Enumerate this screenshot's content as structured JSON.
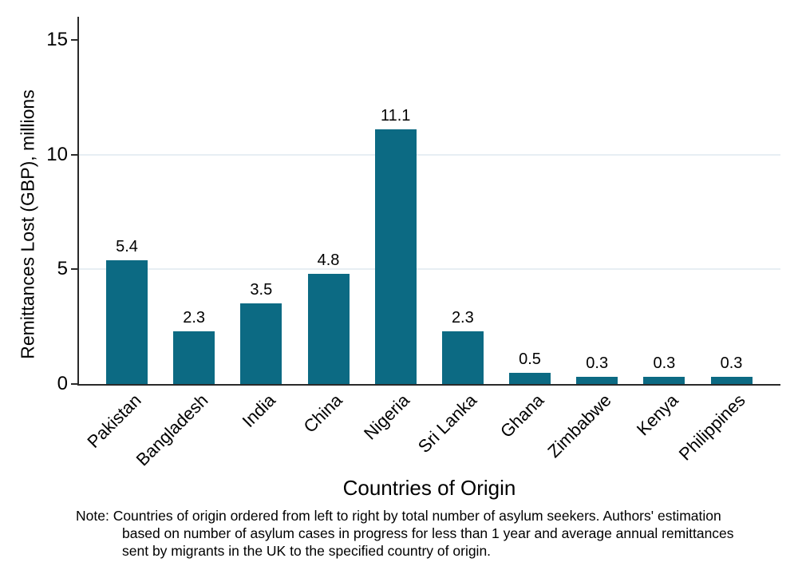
{
  "chart_data": {
    "type": "bar",
    "title": "",
    "categories": [
      "Pakistan",
      "Bangladesh",
      "India",
      "China",
      "Nigeria",
      "Sri Lanka",
      "Ghana",
      "Zimbabwe",
      "Kenya",
      "Philippines"
    ],
    "values": [
      5.4,
      2.3,
      3.5,
      4.8,
      11.1,
      2.3,
      0.5,
      0.3,
      0.3,
      0.3
    ],
    "bar_labels": [
      "5.4",
      "2.3",
      "3.5",
      "4.8",
      "11.1",
      "2.3",
      "0.5",
      "0.3",
      "0.3",
      "0.3"
    ],
    "xlabel": "Countries of Origin",
    "ylabel": "Remittances Lost (GBP), millions",
    "ylim": [
      0,
      16
    ],
    "yticks": [
      0,
      5,
      10,
      15
    ],
    "gridline_values": [
      5,
      10
    ],
    "legend": "none",
    "colors": {
      "bar": "#0c6a83",
      "grid": "#e7eef3",
      "axis": "#2a2a2a",
      "text": "#000000",
      "background": "#ffffff"
    },
    "note_lines": [
      "Note: Countries of origin ordered from left to right by total number of asylum seekers. Authors' estimation",
      "based on number of asylum cases in progress for less than 1 year and average annual remittances",
      "sent by migrants in the UK to the specified country of origin."
    ]
  }
}
